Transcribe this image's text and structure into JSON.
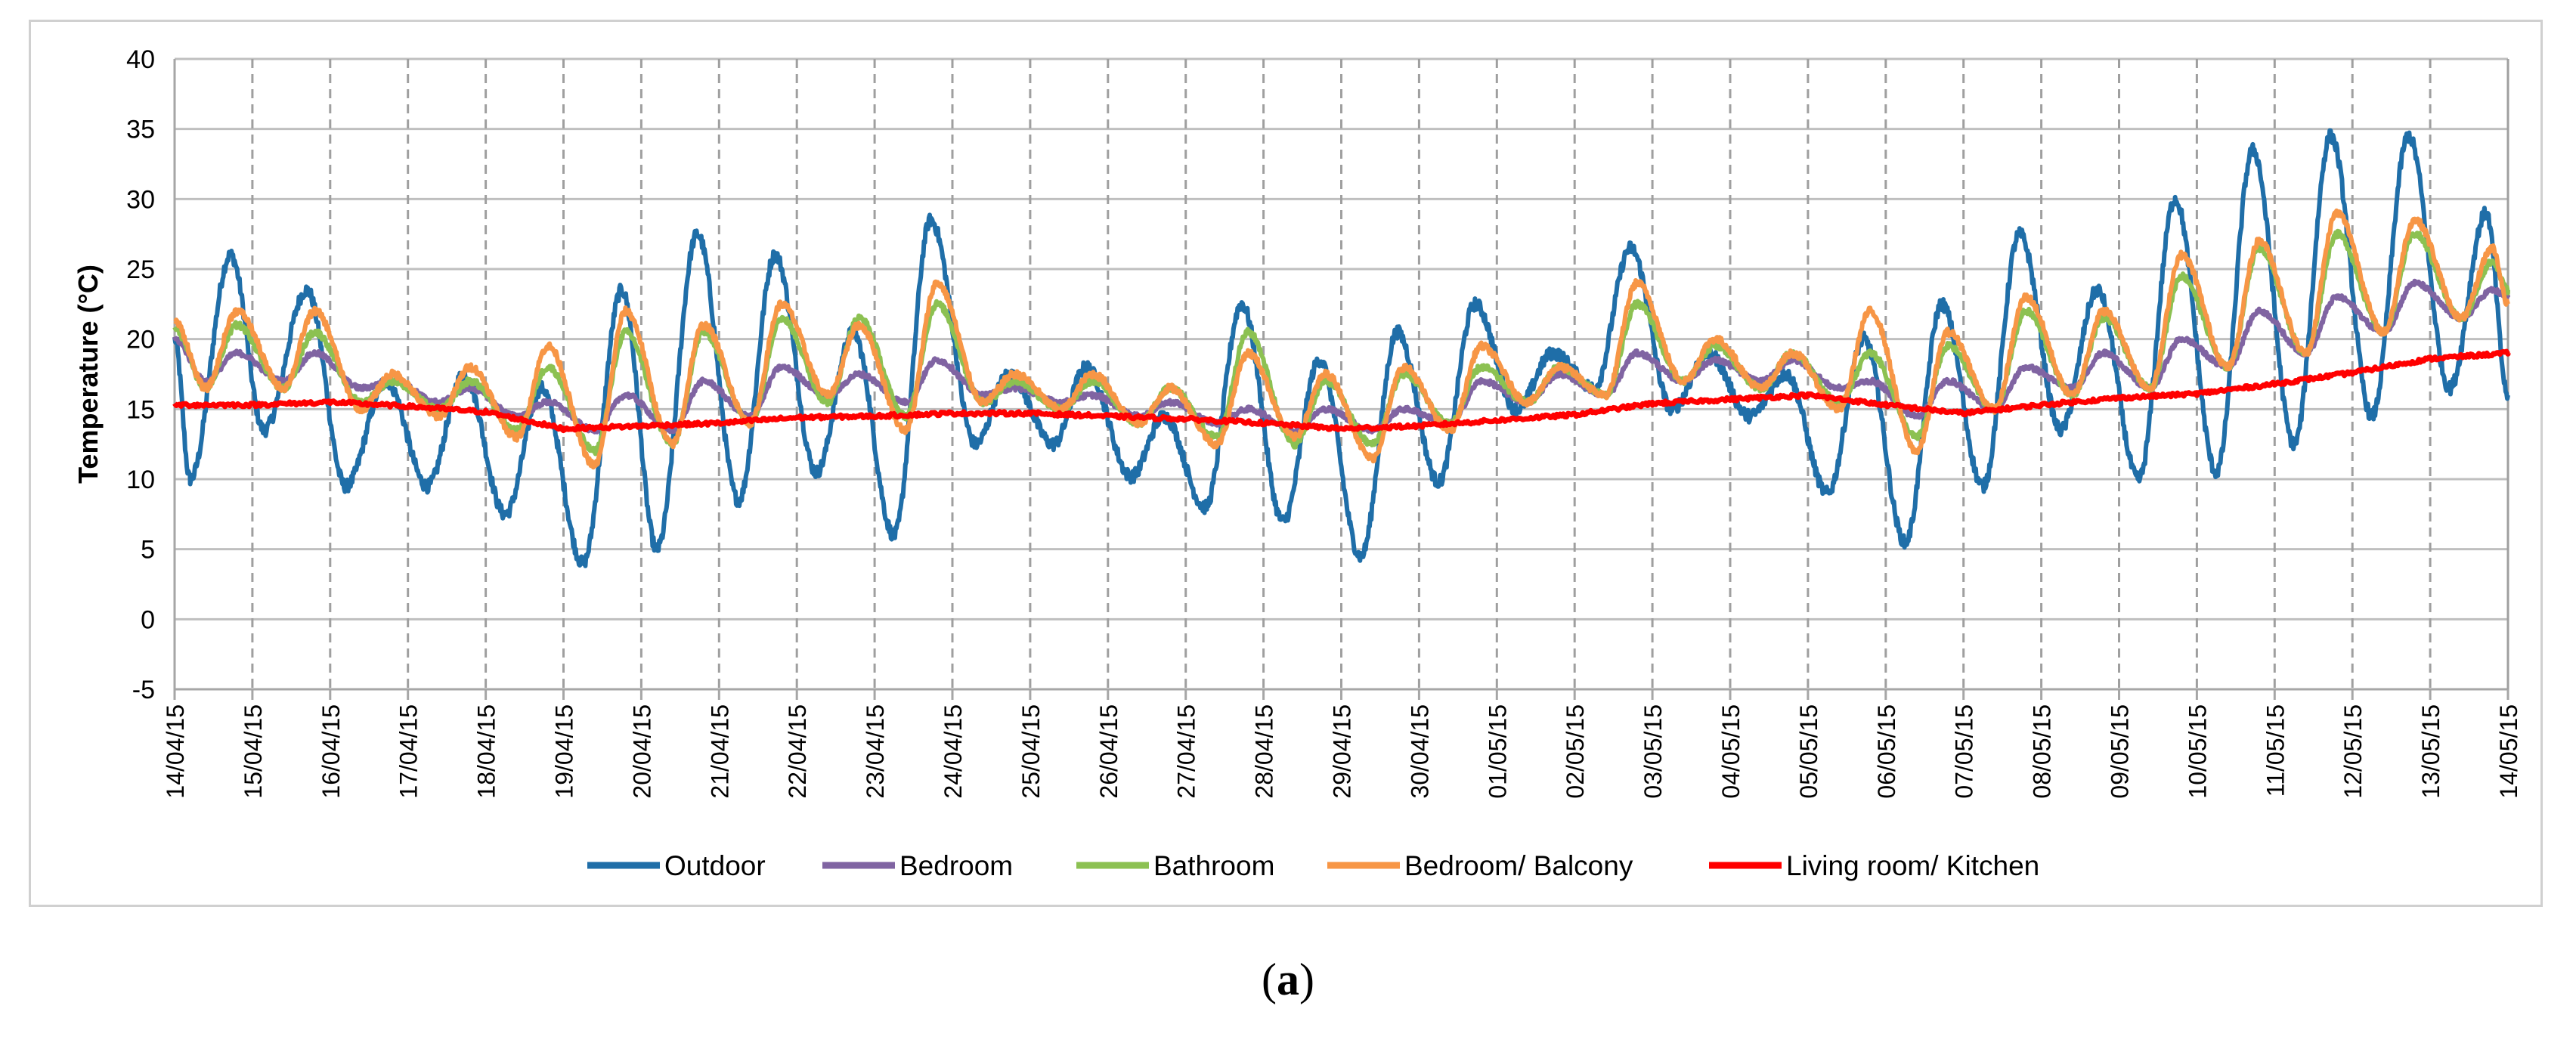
{
  "chart_data": {
    "type": "line",
    "title": "",
    "xlabel": "",
    "ylabel": "Temperature (°C)",
    "ylim": [
      -5,
      40
    ],
    "yticks": [
      -5,
      0,
      5,
      10,
      15,
      20,
      25,
      30,
      35,
      40
    ],
    "grid": true,
    "legend_position": "bottom",
    "x_unit": "days since 14/04/15",
    "categories": [
      "14/04/15",
      "15/04/15",
      "16/04/15",
      "17/04/15",
      "18/04/15",
      "19/04/15",
      "20/04/15",
      "21/04/15",
      "22/04/15",
      "23/04/15",
      "24/04/15",
      "25/04/15",
      "26/04/15",
      "27/04/15",
      "28/04/15",
      "29/04/15",
      "30/04/15",
      "01/05/15",
      "02/05/15",
      "03/05/15",
      "04/05/15",
      "05/05/15",
      "06/05/15",
      "07/05/15",
      "08/05/15",
      "09/05/15",
      "10/05/15",
      "11/05/15",
      "12/05/15",
      "13/05/15",
      "14/05/15"
    ],
    "series": [
      {
        "name": "Outdoor",
        "color": "#1f6ea8",
        "min_time": [
          0.2,
          1.15,
          2.2,
          3.25,
          4.25,
          5.25,
          6.2,
          7.25,
          8.25,
          9.25,
          10.3,
          11.3,
          12.3,
          13.25,
          14.25,
          15.25,
          16.25,
          17.25,
          18.25,
          19.25,
          20.25,
          21.25,
          22.25,
          23.25,
          24.25,
          25.25,
          26.25,
          27.25,
          28.25,
          29.25
        ],
        "min_vals": [
          10,
          13.5,
          9.5,
          9.5,
          7.5,
          4,
          5,
          8.5,
          10.5,
          6,
          12.5,
          12.5,
          10.2,
          8,
          7,
          4.5,
          9.8,
          15,
          16.5,
          15,
          14.5,
          9,
          5.5,
          9.5,
          13.5,
          10,
          10.5,
          12.5,
          14.5,
          16.5
        ],
        "max_time": [
          0.72,
          1.7,
          2.72,
          3.72,
          4.72,
          5.75,
          6.72,
          7.72,
          8.72,
          9.72,
          10.72,
          11.72,
          12.72,
          13.72,
          14.72,
          15.72,
          16.72,
          17.72,
          18.72,
          19.72,
          20.72,
          21.72,
          22.72,
          23.72,
          24.72,
          25.72,
          26.72,
          27.72,
          28.72,
          29.72
        ],
        "max_vals": [
          26,
          23.5,
          17,
          17.5,
          16.5,
          23.5,
          27.5,
          26,
          20.5,
          28.5,
          17.5,
          18,
          14.5,
          22.5,
          18.5,
          20.5,
          22.5,
          19,
          26.5,
          19,
          17.5,
          20,
          22.5,
          27.5,
          23.5,
          30,
          33.5,
          34.5,
          34.5,
          29
        ],
        "end_val": 16
      },
      {
        "name": "Bedroom",
        "color": "#8064a2",
        "min_time": [
          0.4,
          1.4,
          2.4,
          3.4,
          4.4,
          5.4,
          6.4,
          7.4,
          8.4,
          9.4,
          10.4,
          11.4,
          12.4,
          13.4,
          14.4,
          15.4,
          16.4,
          17.4,
          18.4,
          19.4,
          20.4,
          21.4,
          22.4,
          23.4,
          24.4,
          25.4,
          26.4,
          27.4,
          28.4,
          29.4
        ],
        "min_vals": [
          17,
          17,
          16.5,
          15.5,
          14.5,
          13.5,
          13.5,
          14.5,
          16,
          15.5,
          16,
          15.5,
          14.5,
          14,
          13.5,
          13.5,
          14,
          15.5,
          16,
          17,
          17,
          16.5,
          14.5,
          15,
          16.5,
          16.5,
          18,
          19,
          20.5,
          21.5
        ],
        "max_time": [
          0.8,
          1.8,
          2.8,
          3.8,
          4.8,
          5.8,
          6.8,
          7.8,
          8.8,
          9.8,
          10.8,
          11.8,
          12.8,
          13.8,
          14.8,
          15.8,
          16.8,
          17.8,
          18.8,
          19.8,
          20.8,
          21.8,
          22.8,
          23.8,
          24.8,
          25.8,
          26.8,
          27.8,
          28.8,
          29.8
        ],
        "max_vals": [
          19,
          19,
          17,
          16.5,
          15.5,
          16,
          17,
          18,
          17.5,
          18.5,
          16.5,
          16,
          15.5,
          15,
          15,
          15,
          17,
          17.5,
          19,
          18.5,
          18.5,
          17,
          17,
          18,
          19,
          20,
          22,
          23,
          24,
          23.5
        ],
        "end_val": 23
      },
      {
        "name": "Bathroom",
        "color": "#8cc152",
        "min_time": [
          0.4,
          1.4,
          2.4,
          3.4,
          4.4,
          5.4,
          6.4,
          7.4,
          8.4,
          9.4,
          10.4,
          11.4,
          12.4,
          13.4,
          14.4,
          15.4,
          16.4,
          17.4,
          18.4,
          19.4,
          20.4,
          21.4,
          22.4,
          23.4,
          24.4,
          25.4,
          26.4,
          27.4,
          28.4,
          29.4
        ],
        "min_vals": [
          16.5,
          16.5,
          15.5,
          15,
          13.5,
          12,
          12.5,
          14,
          15.5,
          14.5,
          15.5,
          15,
          14,
          13,
          12.5,
          12.5,
          14,
          15.5,
          16,
          17,
          16.5,
          15.5,
          13,
          15,
          16,
          16.5,
          18,
          19,
          20.5,
          21.5
        ],
        "max_time": [
          0.8,
          1.8,
          2.8,
          3.8,
          4.8,
          5.8,
          6.8,
          7.8,
          8.8,
          9.8,
          10.8,
          11.8,
          12.8,
          13.8,
          14.8,
          15.8,
          16.8,
          17.8,
          18.8,
          19.8,
          20.8,
          21.8,
          22.8,
          23.8,
          24.8,
          25.8,
          26.8,
          27.8,
          28.8,
          29.8
        ],
        "max_vals": [
          21,
          20.5,
          17,
          17,
          18,
          20.5,
          20.5,
          21.5,
          21.5,
          22.5,
          17,
          17,
          16.5,
          20.5,
          17,
          17.5,
          18,
          18,
          22.5,
          19.5,
          19,
          19,
          19.5,
          22,
          21.5,
          24.5,
          26.5,
          27.5,
          27.5,
          25.5
        ],
        "end_val": 23.5
      },
      {
        "name": "Bedroom/ Balcony",
        "color": "#f79646",
        "min_time": [
          0.4,
          1.4,
          2.4,
          3.4,
          4.4,
          5.4,
          6.4,
          7.4,
          8.4,
          9.4,
          10.4,
          11.4,
          12.4,
          13.4,
          14.4,
          15.4,
          16.4,
          17.4,
          18.4,
          19.4,
          20.4,
          21.4,
          22.4,
          23.4,
          24.4,
          25.4,
          26.4,
          27.4,
          28.4,
          29.4
        ],
        "min_vals": [
          16.5,
          16.5,
          15,
          14.5,
          13,
          11,
          12.5,
          14,
          16,
          13.5,
          15.5,
          15,
          14,
          12.5,
          13,
          11.5,
          13.5,
          15.5,
          16,
          17,
          16.5,
          15,
          12,
          15,
          16,
          16.5,
          18,
          19,
          20.5,
          21.5
        ],
        "max_time": [
          0.8,
          1.8,
          2.8,
          3.8,
          4.8,
          5.8,
          6.8,
          7.8,
          8.8,
          9.8,
          10.8,
          11.8,
          12.8,
          13.8,
          14.8,
          15.8,
          16.8,
          17.8,
          18.8,
          19.8,
          20.8,
          21.8,
          22.8,
          23.8,
          24.8,
          25.8,
          26.8,
          27.8,
          28.8,
          29.8
        ],
        "max_vals": [
          22,
          22,
          17.5,
          18,
          19.5,
          22,
          21,
          22.5,
          21,
          24,
          17.5,
          17.5,
          16.5,
          19,
          17.5,
          18,
          19.5,
          18,
          24,
          20,
          19,
          22,
          20.5,
          23,
          22,
          26,
          27,
          29,
          28.5,
          26.5
        ],
        "end_val": 22.5
      },
      {
        "name": "Living room/ Kitchen",
        "color": "#ff0000",
        "points": [
          [
            0,
            15.3
          ],
          [
            1,
            15.3
          ],
          [
            2,
            15.5
          ],
          [
            3,
            15.2
          ],
          [
            4,
            14.8
          ],
          [
            5,
            13.6
          ],
          [
            6,
            13.8
          ],
          [
            7,
            14
          ],
          [
            8,
            14.4
          ],
          [
            9,
            14.5
          ],
          [
            10,
            14.7
          ],
          [
            11,
            14.7
          ],
          [
            12,
            14.5
          ],
          [
            13,
            14.3
          ],
          [
            14,
            14
          ],
          [
            15,
            13.6
          ],
          [
            16,
            13.8
          ],
          [
            17,
            14.2
          ],
          [
            18,
            14.6
          ],
          [
            19,
            15.4
          ],
          [
            20,
            15.7
          ],
          [
            21,
            16
          ],
          [
            22,
            15.3
          ],
          [
            23,
            14.7
          ],
          [
            24,
            15.3
          ],
          [
            25,
            15.8
          ],
          [
            26,
            16.1
          ],
          [
            27,
            16.8
          ],
          [
            28,
            17.6
          ],
          [
            29,
            18.6
          ],
          [
            30,
            19
          ]
        ]
      }
    ]
  },
  "caption": {
    "open": "(",
    "label": "a",
    "close": ")"
  }
}
